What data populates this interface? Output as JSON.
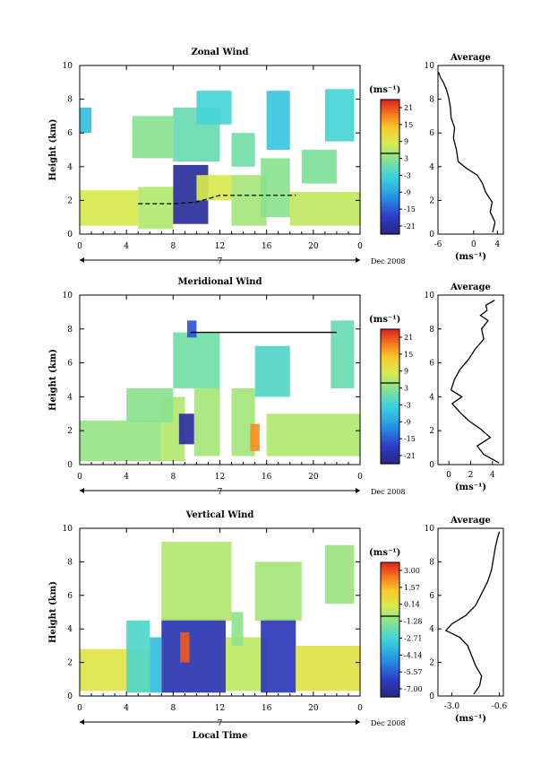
{
  "figure": {
    "x_axis_label": "Local Time",
    "date_label": "Dec 2008",
    "day_label": "7",
    "units_label": "(ms⁻¹)",
    "average_title": "Average"
  },
  "chart_data": [
    {
      "type": "heatmap",
      "title": "Zonal Wind",
      "ylabel": "Height (km)",
      "xlabel": "",
      "x_ticks": [
        "0",
        "4",
        "8",
        "12",
        "16",
        "20",
        "0"
      ],
      "y_ticks": [
        "0",
        "2",
        "4",
        "6",
        "8",
        "10"
      ],
      "xlim": [
        0,
        24
      ],
      "ylim": [
        0,
        10
      ],
      "colorbar": {
        "unit": "(ms⁻¹)",
        "ticks": [
          "21",
          "15",
          "9",
          "3",
          "-3",
          "-9",
          "-15",
          "-21"
        ],
        "range": [
          -24,
          24
        ]
      },
      "cells": [
        {
          "x": [
            0,
            5
          ],
          "y": [
            0.5,
            2.6
          ],
          "v": 9
        },
        {
          "x": [
            5,
            8
          ],
          "y": [
            0.3,
            2.8
          ],
          "v": 6
        },
        {
          "x": [
            8,
            11
          ],
          "y": [
            0.6,
            4.1
          ],
          "v": -22
        },
        {
          "x": [
            10,
            13
          ],
          "y": [
            2,
            3.5
          ],
          "v": 9
        },
        {
          "x": [
            8,
            12
          ],
          "y": [
            4.3,
            7.5
          ],
          "v": 0
        },
        {
          "x": [
            10,
            13
          ],
          "y": [
            6.5,
            8.5
          ],
          "v": -3
        },
        {
          "x": [
            13,
            16
          ],
          "y": [
            0.5,
            3.5
          ],
          "v": 5
        },
        {
          "x": [
            15.5,
            18
          ],
          "y": [
            1,
            4.5
          ],
          "v": 3
        },
        {
          "x": [
            16,
            18
          ],
          "y": [
            5,
            8.5
          ],
          "v": -5
        },
        {
          "x": [
            18,
            24
          ],
          "y": [
            0.5,
            2.5
          ],
          "v": 7
        },
        {
          "x": [
            21,
            23.5
          ],
          "y": [
            5.5,
            8.6
          ],
          "v": -3
        },
        {
          "x": [
            0,
            1
          ],
          "y": [
            6,
            7.5
          ],
          "v": -6
        },
        {
          "x": [
            4.5,
            8
          ],
          "y": [
            4.5,
            7
          ],
          "v": 3
        },
        {
          "x": [
            13,
            15
          ],
          "y": [
            4,
            6
          ],
          "v": 1
        },
        {
          "x": [
            19,
            22
          ],
          "y": [
            3,
            5
          ],
          "v": 2
        }
      ],
      "overlay_lines": [
        {
          "name": "boundary",
          "points": [
            [
              5,
              1.8
            ],
            [
              8,
              1.8
            ],
            [
              10,
              1.9
            ],
            [
              12,
              2.3
            ],
            [
              18.5,
              2.3
            ]
          ]
        }
      ],
      "average": {
        "xlim": [
          -6,
          5
        ],
        "x_ticks": [
          "-6",
          "0",
          "4"
        ],
        "y_ticks": [
          "0",
          "2",
          "4",
          "6",
          "8",
          "10"
        ],
        "xlabel": "(ms⁻¹)",
        "x": [
          3.2,
          3.6,
          2.8,
          3.1,
          2.0,
          1.5,
          0.6,
          -1.2,
          -2.6,
          -2.9,
          -3.4,
          -3.2,
          -3.8,
          -3.9,
          -4.2,
          -4.6,
          -5.1,
          -5.6,
          -5.9
        ],
        "y": [
          0.1,
          0.7,
          1.3,
          1.9,
          2.5,
          3.0,
          3.5,
          3.9,
          4.3,
          5.0,
          5.7,
          6.3,
          6.9,
          7.5,
          8.1,
          8.6,
          9.0,
          9.3,
          9.6
        ]
      }
    },
    {
      "type": "heatmap",
      "title": "Meridional Wind",
      "ylabel": "Height (km)",
      "xlabel": "",
      "x_ticks": [
        "0",
        "4",
        "8",
        "12",
        "16",
        "20",
        "0"
      ],
      "y_ticks": [
        "0",
        "2",
        "4",
        "6",
        "8",
        "10"
      ],
      "xlim": [
        0,
        24
      ],
      "ylim": [
        0,
        10
      ],
      "colorbar": {
        "unit": "(ms⁻¹)",
        "ticks": [
          "21",
          "15",
          "9",
          "3",
          "-3",
          "-9",
          "-15",
          "-21"
        ],
        "range": [
          -24,
          24
        ]
      },
      "cells": [
        {
          "x": [
            0,
            7
          ],
          "y": [
            0.2,
            2.6
          ],
          "v": 4
        },
        {
          "x": [
            7,
            9
          ],
          "y": [
            0.2,
            4
          ],
          "v": 6
        },
        {
          "x": [
            8.5,
            9.8
          ],
          "y": [
            1.2,
            3
          ],
          "v": -22
        },
        {
          "x": [
            9.8,
            12
          ],
          "y": [
            0.5,
            4.5
          ],
          "v": 5
        },
        {
          "x": [
            8,
            12
          ],
          "y": [
            4.5,
            7.8
          ],
          "v": 1
        },
        {
          "x": [
            13,
            15
          ],
          "y": [
            0.5,
            4.5
          ],
          "v": 5
        },
        {
          "x": [
            14.6,
            15.4
          ],
          "y": [
            0.8,
            2.4
          ],
          "v": 18
        },
        {
          "x": [
            15,
            18
          ],
          "y": [
            4,
            7
          ],
          "v": -2
        },
        {
          "x": [
            16,
            24
          ],
          "y": [
            0.5,
            3
          ],
          "v": 6
        },
        {
          "x": [
            21.5,
            23.5
          ],
          "y": [
            4.5,
            8.5
          ],
          "v": 0
        },
        {
          "x": [
            4,
            8
          ],
          "y": [
            2.5,
            4.5
          ],
          "v": 3
        },
        {
          "x": [
            9.2,
            10
          ],
          "y": [
            7.5,
            8.5
          ],
          "v": -16
        }
      ],
      "overlay_lines": [
        {
          "name": "boundary",
          "points": [
            [
              9.5,
              7.8
            ],
            [
              10.5,
              7.8
            ],
            [
              13,
              7.8
            ],
            [
              22,
              7.8
            ]
          ]
        }
      ],
      "average": {
        "xlim": [
          -1,
          5
        ],
        "x_ticks": [
          "0",
          "2",
          "4"
        ],
        "y_ticks": [
          "0",
          "2",
          "4",
          "6",
          "8",
          "10"
        ],
        "xlabel": "(ms⁻¹)",
        "x": [
          4.6,
          3.2,
          2.6,
          3.8,
          2.9,
          1.8,
          1.0,
          0.3,
          1.2,
          0.2,
          0.5,
          1.0,
          1.8,
          2.4,
          3.2,
          3.0,
          3.6,
          2.9,
          3.5,
          3.4,
          4.2
        ],
        "y": [
          0.1,
          0.6,
          1.1,
          1.6,
          2.1,
          2.6,
          3.1,
          3.6,
          4.0,
          4.4,
          5.0,
          5.6,
          6.2,
          6.8,
          7.4,
          8.0,
          8.5,
          8.8,
          9.1,
          9.4,
          9.7
        ]
      }
    },
    {
      "type": "heatmap",
      "title": "Vertical Wind",
      "ylabel": "Height (km)",
      "xlabel": "Local Time",
      "x_ticks": [
        "0",
        "4",
        "8",
        "12",
        "16",
        "20",
        "0"
      ],
      "y_ticks": [
        "0",
        "2",
        "4",
        "6",
        "8",
        "10"
      ],
      "xlim": [
        0,
        24
      ],
      "ylim": [
        0,
        10
      ],
      "colorbar": {
        "unit": "(ms⁻¹)",
        "ticks": [
          "3.00",
          "1.57",
          "0.14",
          "-1.28",
          "-2.71",
          "-4.14",
          "-5.57",
          "-7.00"
        ],
        "range": [
          -7.7,
          3.7
        ]
      },
      "cells": [
        {
          "x": [
            0,
            6
          ],
          "y": [
            0.3,
            2.8
          ],
          "v": 0.3
        },
        {
          "x": [
            4,
            6
          ],
          "y": [
            0.2,
            4.5
          ],
          "v": -2.5
        },
        {
          "x": [
            7,
            12.5
          ],
          "y": [
            0.2,
            4.6
          ],
          "v": -6.8
        },
        {
          "x": [
            8.6,
            9.4
          ],
          "y": [
            2,
            3.8
          ],
          "v": 3.0
        },
        {
          "x": [
            7,
            13
          ],
          "y": [
            4.5,
            9.2
          ],
          "v": -0.6
        },
        {
          "x": [
            12.5,
            16
          ],
          "y": [
            0.3,
            3.5
          ],
          "v": -0.4
        },
        {
          "x": [
            15.5,
            18.5
          ],
          "y": [
            0.2,
            4.6
          ],
          "v": -6.6
        },
        {
          "x": [
            15,
            19
          ],
          "y": [
            4.5,
            8
          ],
          "v": -0.8
        },
        {
          "x": [
            18.5,
            24
          ],
          "y": [
            0.3,
            3
          ],
          "v": 0.4
        },
        {
          "x": [
            21,
            23.5
          ],
          "y": [
            5.5,
            9
          ],
          "v": -1.0
        },
        {
          "x": [
            6,
            7
          ],
          "y": [
            0.2,
            3.5
          ],
          "v": -3.5
        },
        {
          "x": [
            13,
            14
          ],
          "y": [
            3,
            5
          ],
          "v": -1.2
        }
      ],
      "overlay_lines": [],
      "average": {
        "xlim": [
          -3.7,
          -0.4
        ],
        "x_ticks": [
          "-3.0",
          "-0.6"
        ],
        "y_ticks": [
          "0",
          "2",
          "4",
          "6",
          "8",
          "10"
        ],
        "xlabel": "(ms⁻¹)",
        "x": [
          -1.9,
          -1.6,
          -1.5,
          -1.8,
          -2.0,
          -2.2,
          -2.6,
          -3.3,
          -3.0,
          -2.3,
          -1.8,
          -1.5,
          -1.2,
          -1.0,
          -0.9,
          -0.8,
          -0.7,
          -0.6
        ],
        "y": [
          0.1,
          0.6,
          1.2,
          1.8,
          2.4,
          3.0,
          3.5,
          3.9,
          4.3,
          4.8,
          5.4,
          6.1,
          6.8,
          7.5,
          8.2,
          8.9,
          9.4,
          9.8
        ]
      }
    }
  ]
}
